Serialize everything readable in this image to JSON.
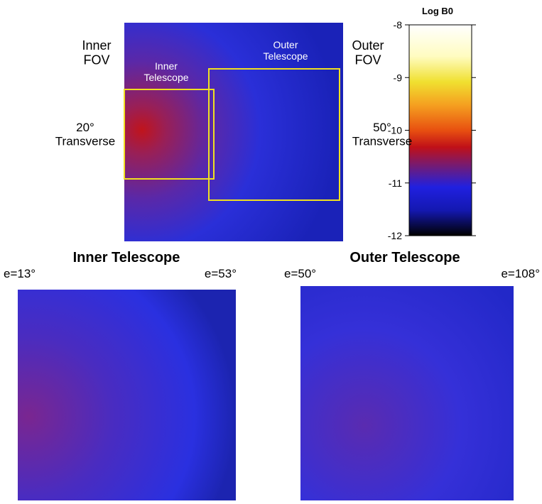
{
  "figure": {
    "top": {
      "inner_fov": "Inner\nFOV",
      "outer_fov": "Outer\nFOV",
      "inner_angle": "20°\nTransverse",
      "outer_angle": "50°\nTransverse",
      "inner_box_label": "Inner\nTelescope",
      "outer_box_label": "Outer\nTelescope"
    },
    "colorbar": {
      "title": "Log B0",
      "ticks": [
        -8,
        -9,
        -10,
        -11,
        -12
      ],
      "lim": [
        -12,
        -8
      ]
    },
    "panels": [
      {
        "title": "Inner Telescope",
        "left": "e=13°",
        "right": "e=53°"
      },
      {
        "title": "Outer Telescope",
        "left": "e=50°",
        "right": "e=108°"
      }
    ]
  }
}
